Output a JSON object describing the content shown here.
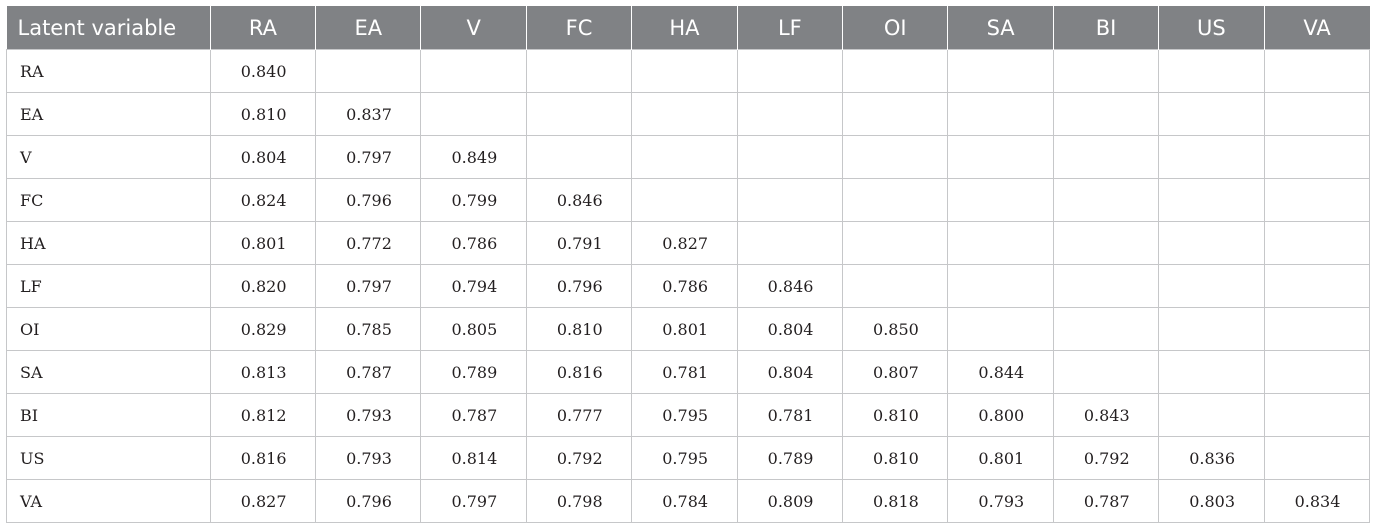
{
  "table": {
    "corner_header": "Latent variable",
    "columns": [
      "RA",
      "EA",
      "V",
      "FC",
      "HA",
      "LF",
      "OI",
      "SA",
      "BI",
      "US",
      "VA"
    ],
    "rows": [
      {
        "label": "RA",
        "values": [
          "0.840",
          "",
          "",
          "",
          "",
          "",
          "",
          "",
          "",
          "",
          ""
        ]
      },
      {
        "label": "EA",
        "values": [
          "0.810",
          "0.837",
          "",
          "",
          "",
          "",
          "",
          "",
          "",
          "",
          ""
        ]
      },
      {
        "label": "V",
        "values": [
          "0.804",
          "0.797",
          "0.849",
          "",
          "",
          "",
          "",
          "",
          "",
          "",
          ""
        ]
      },
      {
        "label": "FC",
        "values": [
          "0.824",
          "0.796",
          "0.799",
          "0.846",
          "",
          "",
          "",
          "",
          "",
          "",
          ""
        ]
      },
      {
        "label": "HA",
        "values": [
          "0.801",
          "0.772",
          "0.786",
          "0.791",
          "0.827",
          "",
          "",
          "",
          "",
          "",
          ""
        ]
      },
      {
        "label": "LF",
        "values": [
          "0.820",
          "0.797",
          "0.794",
          "0.796",
          "0.786",
          "0.846",
          "",
          "",
          "",
          "",
          ""
        ]
      },
      {
        "label": "OI",
        "values": [
          "0.829",
          "0.785",
          "0.805",
          "0.810",
          "0.801",
          "0.804",
          "0.850",
          "",
          "",
          "",
          ""
        ]
      },
      {
        "label": "SA",
        "values": [
          "0.813",
          "0.787",
          "0.789",
          "0.816",
          "0.781",
          "0.804",
          "0.807",
          "0.844",
          "",
          "",
          ""
        ]
      },
      {
        "label": "BI",
        "values": [
          "0.812",
          "0.793",
          "0.787",
          "0.777",
          "0.795",
          "0.781",
          "0.810",
          "0.800",
          "0.843",
          "",
          ""
        ]
      },
      {
        "label": "US",
        "values": [
          "0.816",
          "0.793",
          "0.814",
          "0.792",
          "0.795",
          "0.789",
          "0.810",
          "0.801",
          "0.792",
          "0.836",
          ""
        ]
      },
      {
        "label": "VA",
        "values": [
          "0.827",
          "0.796",
          "0.797",
          "0.798",
          "0.784",
          "0.809",
          "0.818",
          "0.793",
          "0.787",
          "0.803",
          "0.834"
        ]
      }
    ]
  },
  "colors": {
    "header_background": "#808285",
    "header_text": "#ffffff",
    "grid_line": "#c6c7c9",
    "cell_text": "#231f20"
  }
}
